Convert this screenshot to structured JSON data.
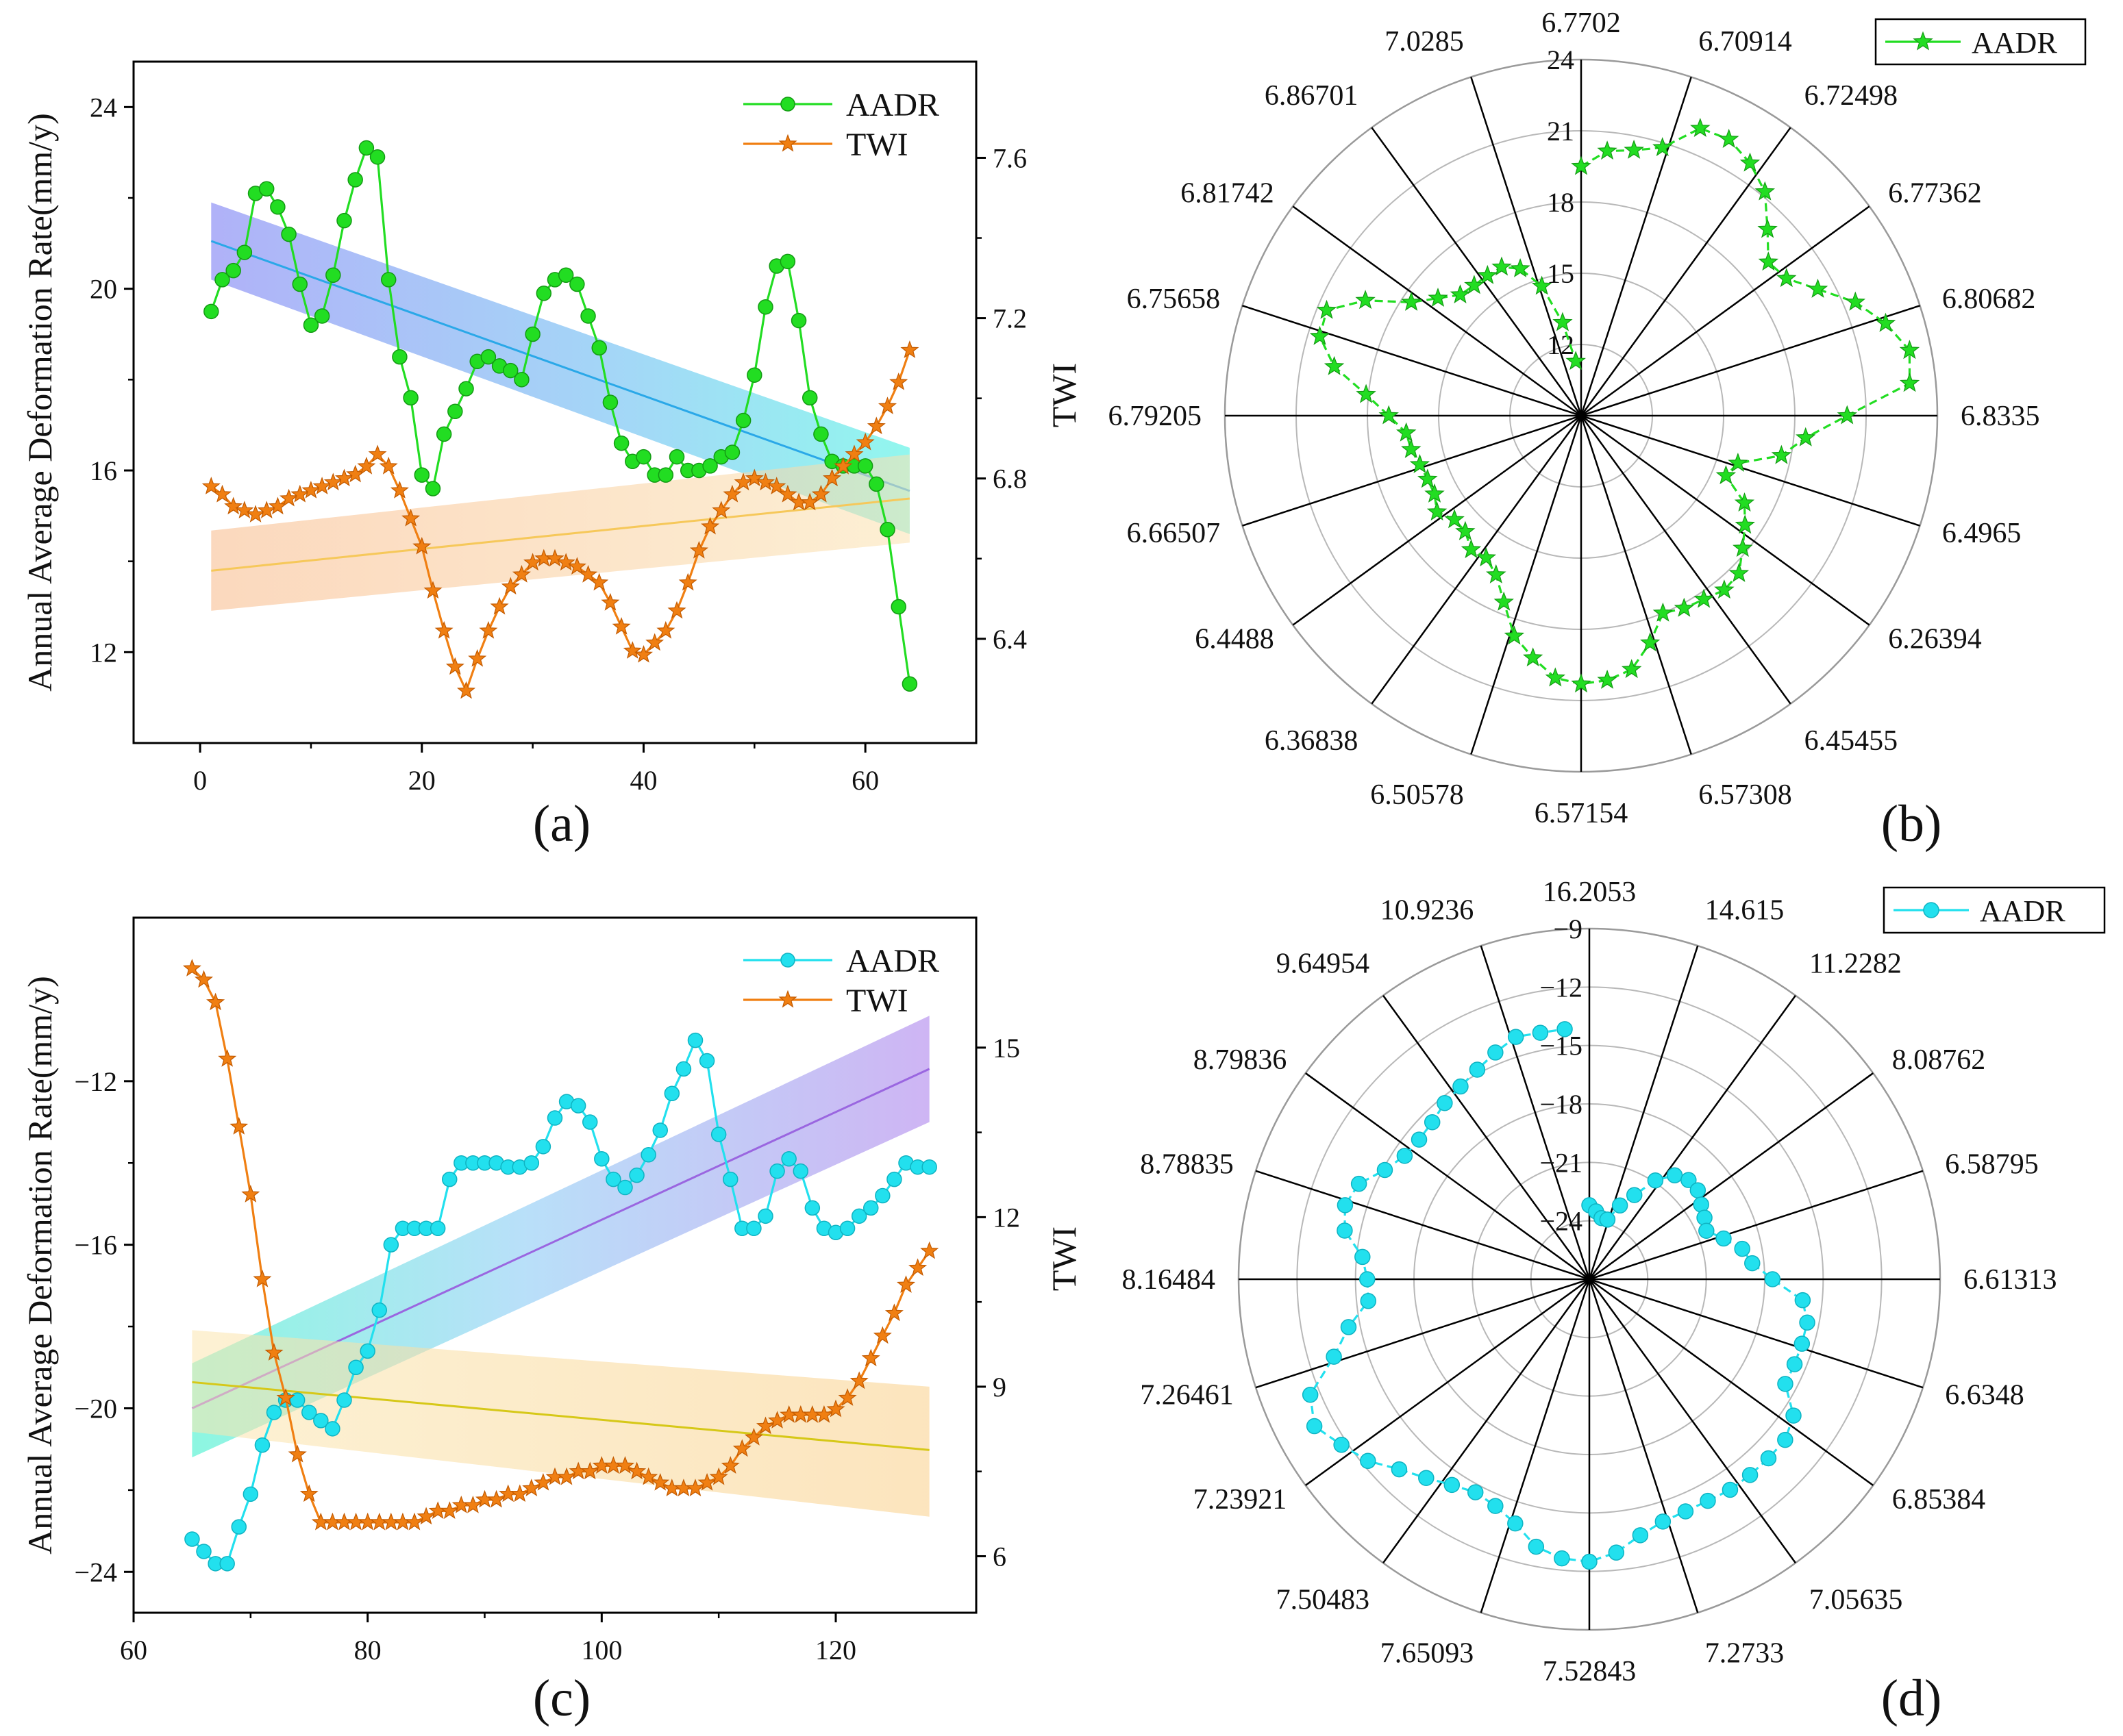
{
  "colors": {
    "green": "#22dd22",
    "green_edge": "#139a13",
    "orange": "#f07f12",
    "orange_edge": "#c25a00",
    "cyan": "#22e0ee",
    "cyan_edge": "#0fb3c2",
    "blue_fit": "#2aa8e8",
    "orange_fit": "#f6c85a",
    "purple_fit": "#9a66e0",
    "yellow_fit": "#d6c818"
  },
  "panels": {
    "a": {
      "letter": "(a)"
    },
    "b": {
      "letter": "(b)"
    },
    "c": {
      "letter": "(c)"
    },
    "d": {
      "letter": "(d)"
    }
  },
  "chart_data": [
    {
      "id": "a",
      "type": "line",
      "ylabel": "Annual Average Deformation Rate(mm/y)",
      "xlim": [
        -6,
        70
      ],
      "ylim": [
        10,
        25
      ],
      "y2lim": [
        6.14,
        7.84
      ],
      "xticks": [
        0,
        20,
        40,
        60
      ],
      "yticks": [
        12,
        16,
        20,
        24
      ],
      "y2ticks": [
        6.4,
        6.8,
        7.2,
        7.6
      ],
      "legend": {
        "placement": "top-right"
      },
      "series": [
        {
          "name": "AADR",
          "axis": "left",
          "marker": "circle",
          "color": "#22dd22",
          "x": [
            1,
            2,
            3,
            4,
            5,
            6,
            7,
            8,
            9,
            10,
            11,
            12,
            13,
            14,
            15,
            16,
            17,
            18,
            19,
            20,
            21,
            22,
            23,
            24,
            25,
            26,
            27,
            28,
            29,
            30,
            31,
            32,
            33,
            34,
            35,
            36,
            37,
            38,
            39,
            40,
            41,
            42,
            43,
            44,
            45,
            46,
            47,
            48,
            49,
            50,
            51,
            52,
            53,
            54,
            55,
            56,
            57,
            58,
            59,
            60,
            61,
            62,
            63,
            64
          ],
          "values": [
            19.5,
            20.2,
            20.4,
            20.8,
            22.1,
            22.2,
            21.8,
            21.2,
            20.1,
            19.2,
            19.4,
            20.3,
            21.5,
            22.4,
            23.1,
            22.9,
            20.2,
            18.5,
            17.6,
            15.9,
            15.6,
            16.8,
            17.3,
            17.8,
            18.4,
            18.5,
            18.3,
            18.2,
            18.0,
            19.0,
            19.9,
            20.2,
            20.3,
            20.1,
            19.4,
            18.7,
            17.5,
            16.6,
            16.2,
            16.3,
            15.9,
            15.9,
            16.3,
            16.0,
            16.0,
            16.1,
            16.3,
            16.4,
            17.1,
            18.1,
            19.6,
            20.5,
            20.6,
            19.3,
            17.6,
            16.8,
            16.2,
            16.1,
            16.1,
            16.1,
            15.7,
            14.7,
            13.0,
            11.3
          ]
        },
        {
          "name": "TWI",
          "axis": "right",
          "marker": "star",
          "color": "#f07f12",
          "x": [
            1,
            2,
            3,
            4,
            5,
            6,
            7,
            8,
            9,
            10,
            11,
            12,
            13,
            14,
            15,
            16,
            17,
            18,
            19,
            20,
            21,
            22,
            23,
            24,
            25,
            26,
            27,
            28,
            29,
            30,
            31,
            32,
            33,
            34,
            35,
            36,
            37,
            38,
            39,
            40,
            41,
            42,
            43,
            44,
            45,
            46,
            47,
            48,
            49,
            50,
            51,
            52,
            53,
            54,
            55,
            56,
            57,
            58,
            59,
            60,
            61,
            62,
            63,
            64
          ],
          "values": [
            6.78,
            6.76,
            6.73,
            6.72,
            6.71,
            6.72,
            6.73,
            6.75,
            6.76,
            6.77,
            6.78,
            6.79,
            6.8,
            6.81,
            6.83,
            6.86,
            6.83,
            6.77,
            6.7,
            6.63,
            6.52,
            6.42,
            6.33,
            6.27,
            6.35,
            6.42,
            6.48,
            6.53,
            6.56,
            6.59,
            6.6,
            6.6,
            6.59,
            6.58,
            6.56,
            6.54,
            6.49,
            6.43,
            6.37,
            6.36,
            6.39,
            6.42,
            6.47,
            6.54,
            6.62,
            6.68,
            6.72,
            6.76,
            6.79,
            6.8,
            6.79,
            6.78,
            6.76,
            6.74,
            6.74,
            6.76,
            6.8,
            6.83,
            6.86,
            6.89,
            6.93,
            6.98,
            7.04,
            7.12
          ]
        }
      ],
      "fits": [
        {
          "axis": "left",
          "x": [
            1,
            64
          ],
          "values": [
            21.05,
            15.55
          ],
          "band_lower": [
            20.2,
            14.6
          ],
          "band_upper": [
            21.9,
            16.5
          ],
          "color": "#2aa8e8"
        },
        {
          "axis": "right",
          "x": [
            1,
            64
          ],
          "values": [
            6.57,
            6.75
          ],
          "band_lower": [
            6.47,
            6.64
          ],
          "band_upper": [
            6.67,
            6.86
          ],
          "color": "#f6c85a"
        }
      ]
    },
    {
      "id": "b",
      "type": "polar-line",
      "axis_title": "TWI",
      "rlim": [
        9,
        24
      ],
      "rticks": [
        12,
        15,
        18,
        21,
        24
      ],
      "legend": {
        "placement": "top-right",
        "label": "AADR"
      },
      "spokes": [
        "6.7702",
        "6.70914",
        "6.72498",
        "6.77362",
        "6.80682",
        "6.8335",
        "6.4965",
        "6.26394",
        "6.45455",
        "6.57308",
        "6.57154",
        "6.50578",
        "6.36838",
        "6.4488",
        "6.66507",
        "6.79205",
        "6.75658",
        "6.81742",
        "6.86701",
        "7.0285"
      ],
      "series": [
        {
          "name": "AADR",
          "marker": "star",
          "color": "#22dd22",
          "values": [
            19.5,
            20.2,
            20.4,
            20.8,
            22.1,
            22.2,
            21.8,
            21.2,
            20.1,
            19.2,
            19.4,
            20.3,
            21.5,
            22.4,
            23.1,
            22.9,
            20.2,
            18.5,
            17.6,
            15.9,
            15.6,
            16.8,
            17.3,
            17.8,
            18.4,
            18.5,
            18.3,
            18.2,
            18.0,
            19.0,
            19.9,
            20.2,
            20.3,
            20.1,
            19.4,
            18.7,
            17.5,
            16.6,
            16.2,
            16.3,
            15.9,
            15.9,
            16.3,
            16.0,
            16.0,
            16.1,
            16.3,
            16.4,
            17.1,
            18.1,
            19.6,
            20.5,
            20.6,
            19.3,
            17.6,
            16.8,
            16.2,
            16.1,
            16.1,
            16.1,
            15.7,
            14.7,
            13.0,
            11.3
          ]
        }
      ]
    },
    {
      "id": "c",
      "type": "line",
      "ylabel": "Annual Average Deformation Rate(mm/y)",
      "xlim": [
        60,
        132
      ],
      "ylim": [
        -25,
        -8
      ],
      "y2lim": [
        5,
        17.3
      ],
      "xticks": [
        60,
        80,
        100,
        120
      ],
      "yticks": [
        -24,
        -20,
        -16,
        -12
      ],
      "y2ticks": [
        6,
        9,
        12,
        15
      ],
      "legend": {
        "placement": "top-right"
      },
      "series": [
        {
          "name": "AADR",
          "axis": "left",
          "marker": "circle",
          "color": "#22e0ee",
          "x": [
            65,
            66,
            67,
            68,
            69,
            70,
            71,
            72,
            73,
            74,
            75,
            76,
            77,
            78,
            79,
            80,
            81,
            82,
            83,
            84,
            85,
            86,
            87,
            88,
            89,
            90,
            91,
            92,
            93,
            94,
            95,
            96,
            97,
            98,
            99,
            100,
            101,
            102,
            103,
            104,
            105,
            106,
            107,
            108,
            109,
            110,
            111,
            112,
            113,
            114,
            115,
            116,
            117,
            118,
            119,
            120,
            121,
            122,
            123,
            124,
            125,
            126,
            127,
            128
          ],
          "values": [
            -23.2,
            -23.5,
            -23.8,
            -23.8,
            -22.9,
            -22.1,
            -20.9,
            -20.1,
            -19.8,
            -19.8,
            -20.1,
            -20.3,
            -20.5,
            -19.8,
            -19.0,
            -18.6,
            -17.6,
            -16.0,
            -15.6,
            -15.6,
            -15.6,
            -15.6,
            -14.4,
            -14.0,
            -14.0,
            -14.0,
            -14.0,
            -14.1,
            -14.1,
            -14.0,
            -13.6,
            -12.9,
            -12.5,
            -12.6,
            -13.0,
            -13.9,
            -14.4,
            -14.6,
            -14.3,
            -13.8,
            -13.2,
            -12.3,
            -11.7,
            -11.0,
            -11.5,
            -13.3,
            -14.4,
            -15.6,
            -15.6,
            -15.3,
            -14.2,
            -13.9,
            -14.2,
            -15.1,
            -15.6,
            -15.7,
            -15.6,
            -15.3,
            -15.1,
            -14.8,
            -14.4,
            -14.0,
            -14.1,
            -14.1
          ]
        },
        {
          "name": "TWI",
          "axis": "right",
          "marker": "star",
          "color": "#f07f12",
          "x": [
            65,
            66,
            67,
            68,
            69,
            70,
            71,
            72,
            73,
            74,
            75,
            76,
            77,
            78,
            79,
            80,
            81,
            82,
            83,
            84,
            85,
            86,
            87,
            88,
            89,
            90,
            91,
            92,
            93,
            94,
            95,
            96,
            97,
            98,
            99,
            100,
            101,
            102,
            103,
            104,
            105,
            106,
            107,
            108,
            109,
            110,
            111,
            112,
            113,
            114,
            115,
            116,
            117,
            118,
            119,
            120,
            121,
            122,
            123,
            124,
            125,
            126,
            127,
            128
          ],
          "values": [
            16.4,
            16.2,
            15.8,
            14.8,
            13.6,
            12.4,
            10.9,
            9.6,
            8.8,
            7.8,
            7.1,
            6.6,
            6.6,
            6.6,
            6.6,
            6.6,
            6.6,
            6.6,
            6.6,
            6.6,
            6.7,
            6.8,
            6.8,
            6.9,
            6.9,
            7.0,
            7.0,
            7.1,
            7.1,
            7.2,
            7.3,
            7.4,
            7.4,
            7.5,
            7.5,
            7.6,
            7.6,
            7.6,
            7.5,
            7.4,
            7.3,
            7.2,
            7.2,
            7.2,
            7.3,
            7.4,
            7.6,
            7.9,
            8.1,
            8.3,
            8.4,
            8.5,
            8.5,
            8.5,
            8.5,
            8.6,
            8.8,
            9.1,
            9.5,
            9.9,
            10.3,
            10.8,
            11.1,
            11.4
          ]
        }
      ],
      "fits": [
        {
          "axis": "left",
          "x": [
            65,
            128
          ],
          "values": [
            -20.0,
            -11.7
          ],
          "band_lower": [
            -21.2,
            -13.0
          ],
          "band_upper": [
            -18.9,
            -10.4
          ],
          "color": "#9a66e0"
        },
        {
          "axis": "right",
          "x": [
            65,
            128
          ],
          "values": [
            9.08,
            7.88
          ],
          "band_lower": [
            8.2,
            6.7
          ],
          "band_upper": [
            10.0,
            9.0
          ],
          "color": "#d6c818"
        }
      ]
    },
    {
      "id": "d",
      "type": "polar-line",
      "axis_title": "TWI",
      "rlim": [
        -27,
        -9
      ],
      "rticks": [
        -24,
        -21,
        -18,
        -15,
        -12,
        -9
      ],
      "legend": {
        "placement": "top-right",
        "label": "AADR"
      },
      "spokes": [
        "16.2053",
        "14.615",
        "11.2282",
        "8.08762",
        "6.58795",
        "6.61313",
        "6.6348",
        "6.85384",
        "7.05635",
        "7.2733",
        "7.52843",
        "7.65093",
        "7.50483",
        "7.23921",
        "7.26461",
        "8.16484",
        "8.78835",
        "8.79836",
        "9.64954",
        "10.9236"
      ],
      "series": [
        {
          "name": "AADR",
          "marker": "circle",
          "color": "#22e0ee",
          "values": [
            -23.2,
            -23.5,
            -23.8,
            -23.8,
            -22.9,
            -22.1,
            -20.9,
            -20.1,
            -19.8,
            -19.8,
            -20.1,
            -20.3,
            -20.5,
            -19.8,
            -19.0,
            -18.6,
            -17.6,
            -16.0,
            -15.6,
            -15.6,
            -15.6,
            -15.6,
            -14.4,
            -14.0,
            -14.0,
            -14.0,
            -14.0,
            -14.1,
            -14.1,
            -14.0,
            -13.6,
            -12.9,
            -12.5,
            -12.6,
            -13.0,
            -13.9,
            -14.4,
            -14.6,
            -14.3,
            -13.8,
            -13.2,
            -12.3,
            -11.7,
            -11.0,
            -11.5,
            -13.3,
            -14.4,
            -15.6,
            -15.6,
            -15.3,
            -14.2,
            -13.9,
            -14.2,
            -15.1,
            -15.6,
            -15.7,
            -15.6,
            -15.3,
            -15.1,
            -14.8,
            -14.4,
            -14.0,
            -14.1,
            -14.1
          ]
        }
      ]
    }
  ]
}
